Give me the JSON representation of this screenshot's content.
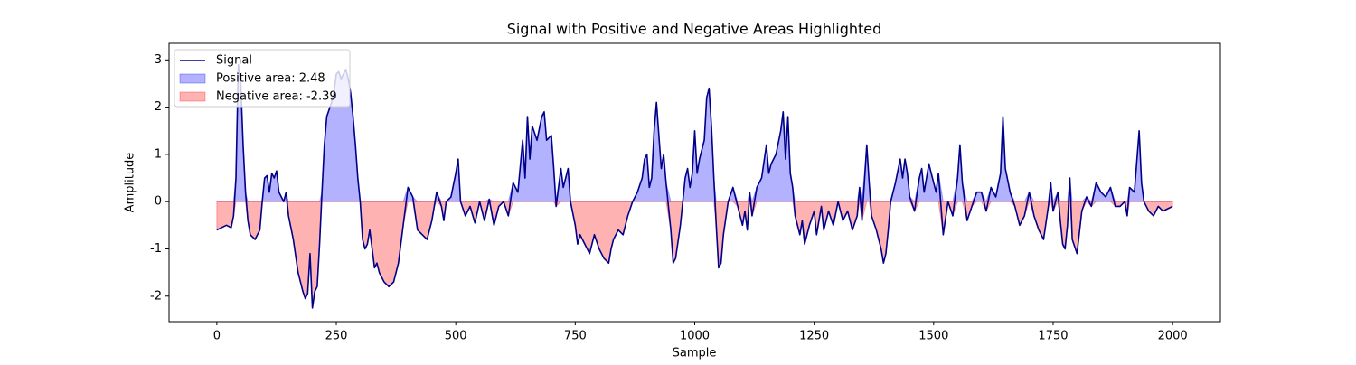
{
  "chart_data": {
    "type": "area_split_line",
    "title": "Signal with Positive and Negative Areas Highlighted",
    "xlabel": "Sample",
    "ylabel": "Amplitude",
    "xlim": [
      -100,
      2100
    ],
    "ylim": [
      -2.54,
      3.35
    ],
    "xticks": [
      0,
      250,
      500,
      750,
      1000,
      1250,
      1500,
      1750,
      2000
    ],
    "yticks": [
      -2,
      -1,
      0,
      1,
      2,
      3
    ],
    "legend": "upper left",
    "x": [
      0,
      10,
      20,
      30,
      35,
      40,
      45,
      50,
      55,
      60,
      65,
      70,
      80,
      90,
      95,
      100,
      105,
      110,
      115,
      120,
      125,
      130,
      140,
      145,
      150,
      160,
      170,
      180,
      185,
      190,
      195,
      200,
      205,
      210,
      215,
      220,
      225,
      230,
      240,
      245,
      250,
      255,
      260,
      265,
      270,
      275,
      280,
      285,
      290,
      295,
      300,
      305,
      310,
      315,
      320,
      330,
      335,
      340,
      345,
      350,
      360,
      370,
      380,
      390,
      400,
      410,
      420,
      430,
      440,
      450,
      455,
      460,
      470,
      475,
      480,
      490,
      500,
      505,
      510,
      520,
      530,
      540,
      550,
      560,
      570,
      580,
      590,
      600,
      610,
      620,
      630,
      640,
      645,
      650,
      655,
      660,
      670,
      680,
      685,
      690,
      700,
      705,
      710,
      720,
      725,
      735,
      740,
      750,
      755,
      760,
      770,
      780,
      790,
      800,
      810,
      820,
      825,
      830,
      840,
      850,
      860,
      870,
      880,
      890,
      895,
      900,
      905,
      910,
      915,
      920,
      925,
      930,
      935,
      940,
      950,
      955,
      960,
      970,
      975,
      980,
      985,
      990,
      995,
      1000,
      1005,
      1010,
      1020,
      1025,
      1030,
      1035,
      1040,
      1045,
      1050,
      1055,
      1060,
      1070,
      1080,
      1090,
      1100,
      1105,
      1110,
      1115,
      1120,
      1130,
      1140,
      1150,
      1155,
      1160,
      1170,
      1180,
      1185,
      1190,
      1195,
      1200,
      1205,
      1210,
      1220,
      1225,
      1230,
      1240,
      1250,
      1255,
      1260,
      1265,
      1270,
      1280,
      1290,
      1300,
      1310,
      1320,
      1330,
      1340,
      1345,
      1350,
      1360,
      1365,
      1370,
      1380,
      1390,
      1395,
      1400,
      1405,
      1410,
      1420,
      1430,
      1435,
      1440,
      1445,
      1450,
      1460,
      1470,
      1475,
      1480,
      1490,
      1500,
      1505,
      1510,
      1520,
      1530,
      1540,
      1550,
      1555,
      1560,
      1570,
      1580,
      1590,
      1600,
      1610,
      1620,
      1630,
      1640,
      1645,
      1650,
      1660,
      1670,
      1680,
      1690,
      1700,
      1710,
      1720,
      1730,
      1740,
      1745,
      1750,
      1760,
      1765,
      1770,
      1775,
      1780,
      1785,
      1790,
      1800,
      1810,
      1820,
      1830,
      1840,
      1850,
      1860,
      1870,
      1880,
      1890,
      1900,
      1905,
      1910,
      1920,
      1930,
      1935,
      1940,
      1950,
      1960,
      1970,
      1980,
      1990,
      2000
    ],
    "series": [
      {
        "name": "Signal",
        "color": "#00008b",
        "values": [
          -0.6,
          -0.55,
          -0.5,
          -0.55,
          -0.3,
          0.5,
          2.9,
          2.5,
          1.2,
          0.2,
          -0.4,
          -0.7,
          -0.8,
          -0.6,
          0.0,
          0.5,
          0.55,
          0.2,
          0.6,
          0.5,
          0.65,
          0.2,
          0.0,
          0.2,
          -0.3,
          -0.8,
          -1.5,
          -1.9,
          -2.05,
          -1.95,
          -1.1,
          -2.25,
          -1.9,
          -1.8,
          -0.9,
          0.2,
          1.2,
          1.8,
          2.1,
          2.3,
          2.7,
          2.75,
          2.6,
          2.7,
          2.8,
          2.6,
          2.3,
          1.8,
          1.2,
          0.5,
          0.0,
          -0.8,
          -1.0,
          -0.9,
          -0.6,
          -1.4,
          -1.3,
          -1.5,
          -1.6,
          -1.7,
          -1.8,
          -1.7,
          -1.3,
          -0.5,
          0.3,
          0.1,
          -0.6,
          -0.7,
          -0.8,
          -0.4,
          -0.1,
          0.2,
          -0.1,
          -0.4,
          0.0,
          0.1,
          0.6,
          0.9,
          0.0,
          -0.3,
          -0.1,
          -0.45,
          0.0,
          -0.4,
          0.05,
          -0.5,
          -0.1,
          0.0,
          -0.3,
          0.4,
          0.2,
          1.3,
          0.5,
          1.8,
          0.9,
          1.6,
          1.3,
          1.8,
          1.9,
          1.3,
          1.4,
          0.7,
          -0.1,
          0.7,
          0.3,
          0.7,
          0.0,
          -0.5,
          -0.9,
          -0.7,
          -0.9,
          -1.1,
          -0.7,
          -1.0,
          -1.2,
          -1.3,
          -1.0,
          -0.8,
          -0.6,
          -0.7,
          -0.3,
          0.0,
          0.2,
          0.5,
          0.9,
          1.0,
          0.3,
          0.5,
          1.5,
          2.1,
          1.4,
          0.7,
          1.0,
          0.4,
          -0.6,
          -1.3,
          -1.2,
          -0.5,
          0.0,
          0.5,
          0.7,
          0.3,
          0.6,
          1.5,
          0.6,
          0.9,
          1.3,
          2.2,
          2.4,
          1.6,
          0.5,
          -0.5,
          -1.4,
          -1.3,
          -0.7,
          0.0,
          0.3,
          -0.1,
          -0.5,
          -0.2,
          -0.6,
          0.2,
          -0.3,
          0.3,
          0.5,
          1.2,
          0.6,
          0.8,
          1.0,
          1.5,
          1.9,
          0.9,
          1.8,
          0.6,
          0.3,
          -0.3,
          -0.7,
          -0.4,
          -0.9,
          -0.5,
          -0.2,
          -0.7,
          -0.4,
          -0.1,
          -0.6,
          -0.2,
          -0.5,
          0.0,
          -0.4,
          -0.2,
          -0.6,
          -0.3,
          0.3,
          -0.4,
          1.2,
          0.4,
          -0.3,
          -0.6,
          -1.0,
          -1.3,
          -1.1,
          -0.6,
          0.0,
          0.4,
          0.9,
          0.5,
          0.9,
          0.6,
          0.1,
          -0.2,
          0.5,
          0.7,
          0.2,
          0.8,
          0.4,
          0.2,
          0.6,
          -0.7,
          0.0,
          -0.3,
          0.5,
          1.2,
          0.4,
          -0.4,
          -0.1,
          0.2,
          0.2,
          -0.2,
          0.3,
          0.1,
          0.6,
          1.8,
          0.7,
          0.2,
          -0.1,
          -0.5,
          -0.3,
          0.2,
          -0.3,
          -0.6,
          -0.8,
          -0.1,
          0.4,
          -0.2,
          0.2,
          -0.4,
          -0.9,
          -1.0,
          -0.5,
          0.5,
          -0.8,
          -1.1,
          -0.2,
          0.1,
          -0.1,
          0.4,
          0.2,
          0.1,
          0.3,
          -0.1,
          -0.1,
          0.0,
          -0.3,
          0.3,
          0.2,
          1.5,
          0.4,
          0.0,
          -0.2,
          -0.3,
          -0.1,
          -0.2,
          -0.15,
          -0.1
        ]
      }
    ],
    "fills": [
      {
        "name": "Positive area: 2.48",
        "color": "blue",
        "where": "above"
      },
      {
        "name": "Negative area: -2.39",
        "color": "red",
        "where": "below"
      }
    ]
  }
}
